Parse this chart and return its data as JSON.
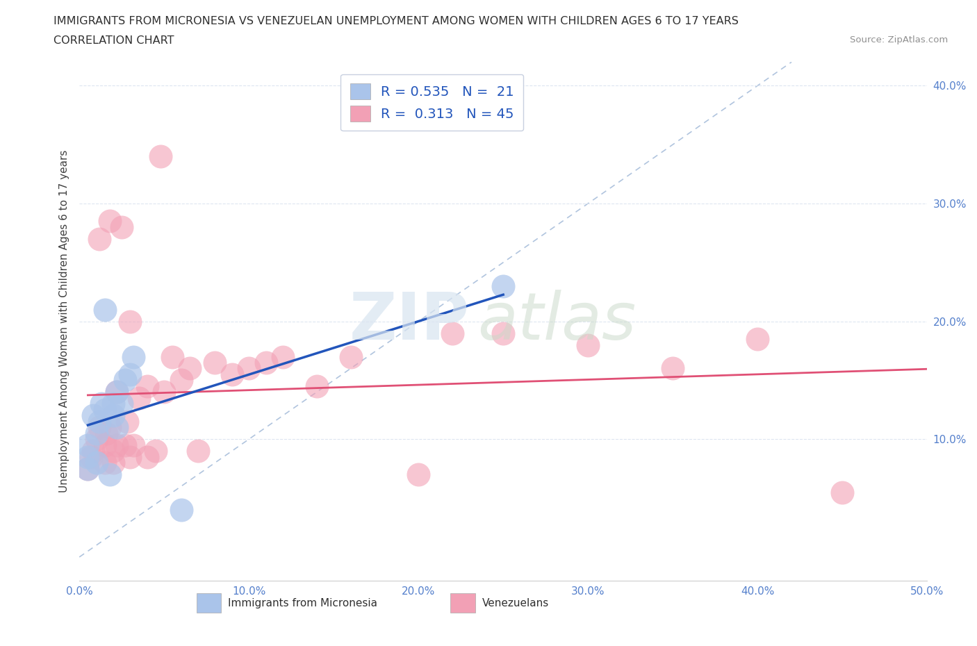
{
  "title_line1": "IMMIGRANTS FROM MICRONESIA VS VENEZUELAN UNEMPLOYMENT AMONG WOMEN WITH CHILDREN AGES 6 TO 17 YEARS",
  "title_line2": "CORRELATION CHART",
  "source": "Source: ZipAtlas.com",
  "ylabel": "Unemployment Among Women with Children Ages 6 to 17 years",
  "xlim": [
    0.0,
    0.5
  ],
  "ylim": [
    -0.02,
    0.42
  ],
  "xticks": [
    0.0,
    0.1,
    0.2,
    0.3,
    0.4,
    0.5
  ],
  "xticklabels": [
    "0.0%",
    "10.0%",
    "20.0%",
    "30.0%",
    "40.0%",
    "50.0%"
  ],
  "yticks": [
    0.1,
    0.2,
    0.3,
    0.4
  ],
  "yticklabels": [
    "10.0%",
    "20.0%",
    "30.0%",
    "40.0%"
  ],
  "watermark_zip": "ZIP",
  "watermark_atlas": "atlas",
  "legend_r1": "R = 0.535",
  "legend_n1": "N =  21",
  "legend_r2": "R =  0.313",
  "legend_n2": "N = 45",
  "micronesia_color": "#aac4ea",
  "venezuelan_color": "#f2a0b5",
  "trendline_micro_color": "#2255bb",
  "trendline_vene_color": "#e05075",
  "diagonal_color": "#b0c4de",
  "background_color": "#ffffff",
  "grid_color": "#dde5f0",
  "micronesia_x": [
    0.005,
    0.005,
    0.005,
    0.008,
    0.01,
    0.01,
    0.012,
    0.013,
    0.015,
    0.015,
    0.018,
    0.02,
    0.02,
    0.022,
    0.022,
    0.025,
    0.027,
    0.03,
    0.032,
    0.06,
    0.25
  ],
  "micronesia_y": [
    0.075,
    0.085,
    0.095,
    0.12,
    0.08,
    0.105,
    0.115,
    0.13,
    0.125,
    0.21,
    0.07,
    0.12,
    0.13,
    0.11,
    0.14,
    0.13,
    0.15,
    0.155,
    0.17,
    0.04,
    0.23
  ],
  "venezuelan_x": [
    0.005,
    0.007,
    0.008,
    0.01,
    0.012,
    0.012,
    0.015,
    0.015,
    0.016,
    0.018,
    0.018,
    0.02,
    0.02,
    0.022,
    0.022,
    0.025,
    0.027,
    0.028,
    0.03,
    0.03,
    0.032,
    0.035,
    0.04,
    0.04,
    0.045,
    0.048,
    0.05,
    0.055,
    0.06,
    0.065,
    0.07,
    0.08,
    0.09,
    0.1,
    0.11,
    0.12,
    0.14,
    0.16,
    0.2,
    0.22,
    0.25,
    0.3,
    0.35,
    0.4,
    0.45
  ],
  "venezuelan_y": [
    0.075,
    0.085,
    0.09,
    0.1,
    0.11,
    0.27,
    0.08,
    0.095,
    0.105,
    0.11,
    0.285,
    0.08,
    0.09,
    0.095,
    0.14,
    0.28,
    0.095,
    0.115,
    0.085,
    0.2,
    0.095,
    0.135,
    0.085,
    0.145,
    0.09,
    0.34,
    0.14,
    0.17,
    0.15,
    0.16,
    0.09,
    0.165,
    0.155,
    0.16,
    0.165,
    0.17,
    0.145,
    0.17,
    0.07,
    0.19,
    0.19,
    0.18,
    0.16,
    0.185,
    0.055
  ]
}
